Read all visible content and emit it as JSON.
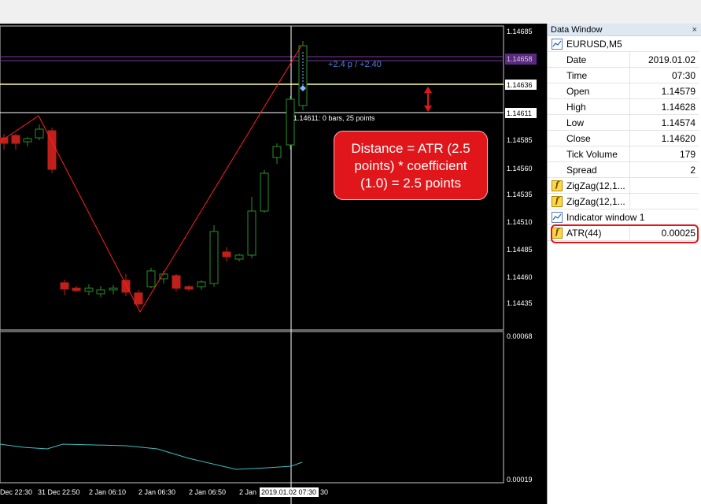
{
  "chart": {
    "symbol": "EURUSD",
    "timeframe": "M5",
    "price_labels": [
      "1.14685",
      "1.14658",
      "1.14636",
      "1.14611",
      "1.14585",
      "1.14560",
      "1.14535",
      "1.14510",
      "1.14485",
      "1.14460",
      "1.14435"
    ],
    "indicator_labels": [
      "0.00068",
      "0.00019"
    ],
    "time_labels": [
      "Dec 22:30",
      "31 Dec 22:50",
      "2 Jan 06:10",
      "2 Jan 06:30",
      "2 Jan 06:50",
      "2 Jan",
      "2019.01.02 07:30",
      "30"
    ],
    "crosshair_info": "1.14611: 0 bars, 25 points",
    "measure_label": "+2.4 p / +2.40",
    "callout": [
      "Distance = ATR (2.5",
      "points) * coefficient",
      "(1.0) = 2.5 points"
    ],
    "colors": {
      "background": "#000000",
      "bull_candle": "#2a8f2a",
      "bear_candle": "#c0201a",
      "zigzag": "#ff2020",
      "atr_line": "#3fc0c0",
      "level_yellow": "#ffff99",
      "level_purple": "#7a3aa0",
      "callout": "#e0161b"
    }
  },
  "data_window": {
    "title": "Data Window",
    "close_glyph": "×",
    "symbol_row": "EURUSD,M5",
    "rows": [
      {
        "label": "Date",
        "value": "2019.01.02"
      },
      {
        "label": "Time",
        "value": "07:30"
      },
      {
        "label": "Open",
        "value": "1.14579"
      },
      {
        "label": "High",
        "value": "1.14628"
      },
      {
        "label": "Low",
        "value": "1.14574"
      },
      {
        "label": "Close",
        "value": "1.14620"
      },
      {
        "label": "Tick Volume",
        "value": "179"
      },
      {
        "label": "Spread",
        "value": "2"
      }
    ],
    "indicators": [
      {
        "label": "ZigZag(12,1...",
        "value": ""
      },
      {
        "label": "ZigZag(12,1...",
        "value": ""
      }
    ],
    "indicator_window": "Indicator window 1",
    "atr": {
      "label": "ATR(44)",
      "value": "0.00025"
    }
  }
}
